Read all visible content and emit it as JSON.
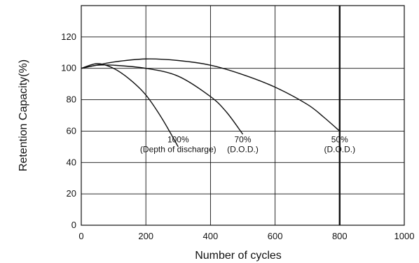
{
  "chart_data": {
    "type": "line",
    "xlabel": "Number of cycles",
    "ylabel": "Retention Capacity(%)",
    "xlim": [
      0,
      1000
    ],
    "ylim": [
      0,
      140
    ],
    "x_ticks": [
      "0",
      "200",
      "400",
      "600",
      "800",
      "1000"
    ],
    "y_ticks": [
      "0",
      "20",
      "40",
      "60",
      "80",
      "100",
      "120"
    ],
    "grid": true,
    "legend": "none",
    "series": [
      {
        "name": "100% (Depth of discharge)",
        "x": [
          0,
          50,
          100,
          150,
          200,
          250,
          300
        ],
        "y": [
          100,
          103,
          100,
          93,
          83,
          68,
          50
        ]
      },
      {
        "name": "70% (D.O.D.)",
        "x": [
          0,
          50,
          100,
          200,
          300,
          400,
          450,
          500
        ],
        "y": [
          100,
          102,
          102,
          100,
          95,
          82,
          72,
          58
        ]
      },
      {
        "name": "50% (D.O.D.)",
        "x": [
          0,
          100,
          200,
          300,
          400,
          500,
          600,
          700,
          750,
          800
        ],
        "y": [
          100,
          104,
          106,
          105,
          102,
          96,
          88,
          77,
          69,
          60
        ]
      }
    ],
    "annotations": [
      {
        "lines": [
          "100%",
          "(Depth of discharge)"
        ],
        "x": 300,
        "y": 60
      },
      {
        "lines": [
          "70%",
          "(D.O.D.)"
        ],
        "x": 500,
        "y": 60
      },
      {
        "lines": [
          "50%",
          "(D.O.D.)"
        ],
        "x": 800,
        "y": 60
      }
    ]
  }
}
